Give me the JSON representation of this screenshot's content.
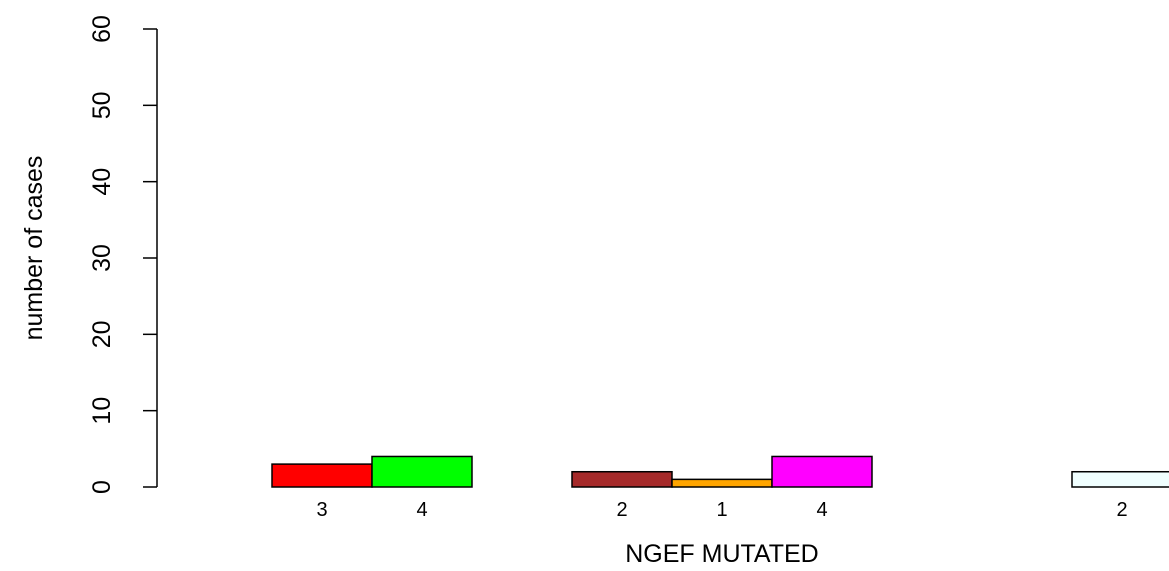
{
  "chart_data": {
    "type": "bar",
    "xlabel": "NGEF MUTATED",
    "ylabel": "number of cases",
    "ylim": [
      0,
      60
    ],
    "yticks": [
      0,
      10,
      20,
      30,
      40,
      50,
      60
    ],
    "grid": false,
    "bars": [
      {
        "value": 3,
        "label": "3",
        "color": "#ff0000"
      },
      {
        "value": 4,
        "label": "4",
        "color": "#00ff00"
      },
      {
        "value": 0,
        "label": "",
        "color": "#ffffff"
      },
      {
        "value": 2,
        "label": "2",
        "color": "#a52a2a"
      },
      {
        "value": 1,
        "label": "1",
        "color": "#ffa500"
      },
      {
        "value": 4,
        "label": "4",
        "color": "#ff00ff"
      },
      {
        "value": 0,
        "label": "",
        "color": "#ffffff"
      },
      {
        "value": 0,
        "label": "",
        "color": "#ffffff"
      },
      {
        "value": 2,
        "label": "2",
        "color": "#f0ffff"
      }
    ]
  }
}
